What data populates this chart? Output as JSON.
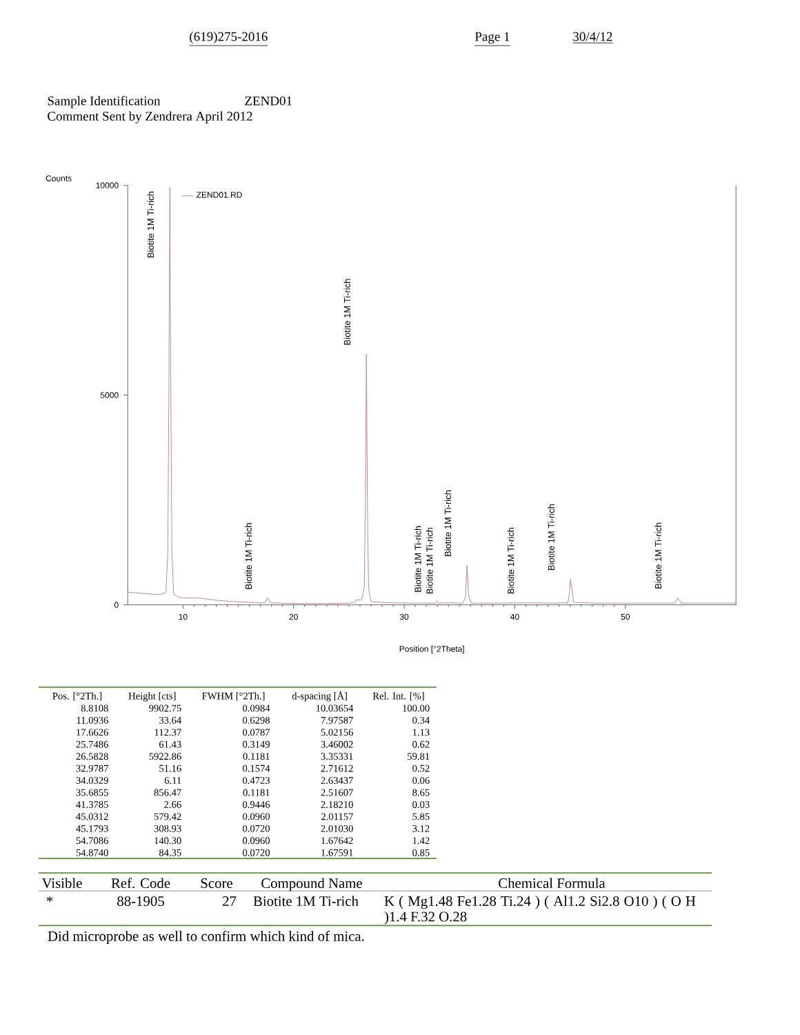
{
  "chart_data": [
    {
      "type": "line",
      "xlabel": "Position [°2Theta]",
      "ylabel": "Counts",
      "xlim": [
        5,
        60
      ],
      "ylim": [
        0,
        10000
      ],
      "xticks": [
        10,
        20,
        30,
        40,
        50
      ],
      "yticks": [
        0,
        5000,
        10000
      ],
      "legend": "top left",
      "series": [
        {
          "name": "ZEND01.RD",
          "color": "#b98c8c",
          "x": [
            5.0,
            5.5,
            6.0,
            6.5,
            7.0,
            7.5,
            8.0,
            8.45,
            8.62,
            8.72,
            8.8108,
            8.9,
            9.0,
            9.15,
            9.6,
            10.3,
            11.0936,
            11.8,
            13.0,
            14.5,
            16.0,
            17.4,
            17.6626,
            17.9,
            19.0,
            21.0,
            23.0,
            25.0,
            25.5,
            25.7486,
            26.15,
            26.38,
            26.48,
            26.5828,
            26.68,
            26.78,
            27.0,
            28.5,
            31.0,
            32.8,
            32.9787,
            33.15,
            34.0329,
            35.3,
            35.55,
            35.6855,
            35.83,
            36.1,
            38.5,
            41.3785,
            43.5,
            44.8,
            44.93,
            45.0312,
            45.1793,
            45.32,
            47.5,
            51.0,
            54.5,
            54.7086,
            54.874,
            55.05,
            57.0,
            60.0
          ],
          "values": [
            300,
            290,
            280,
            270,
            260,
            250,
            250,
            300,
            1200,
            5000,
            9950,
            5000,
            1200,
            250,
            180,
            160,
            170,
            150,
            110,
            80,
            60,
            50,
            160,
            50,
            40,
            30,
            30,
            40,
            60,
            120,
            120,
            400,
            2200,
            5980,
            2200,
            400,
            80,
            50,
            40,
            40,
            90,
            40,
            50,
            40,
            200,
            940,
            200,
            40,
            40,
            50,
            40,
            50,
            250,
            610,
            350,
            60,
            40,
            40,
            40,
            170,
            110,
            40,
            40,
            40
          ]
        }
      ],
      "annotations": [
        "(619)275-2016",
        "Page 1",
        "30/4/12",
        "Sample Identification",
        "ZEND01",
        "Comment Sent by Zendrera April 2012",
        {
          "text": "Biotite 1M Ti-rich",
          "x": 8.8108,
          "y": 9950
        },
        {
          "text": "Biotite 1M Ti-rich",
          "x": 17.6626,
          "y": 160
        },
        {
          "text": "Biotite 1M Ti-rich",
          "x": 26.5828,
          "y": 5980
        },
        {
          "text": "Biotite 1M Ti-rich",
          "x": 32.9787,
          "y": 90
        },
        {
          "text": "Biotite 1M Ti-rich",
          "x": 34.0329,
          "y": 50
        },
        {
          "text": "Biotite 1M Ti-rich",
          "x": 35.6855,
          "y": 940
        },
        {
          "text": "Biotite 1M Ti-rich",
          "x": 41.3785,
          "y": 50
        },
        {
          "text": "Biotite 1M Ti-rich",
          "x": 45.0312,
          "y": 610
        },
        {
          "text": "Biotite 1M Ti-rich",
          "x": 54.7086,
          "y": 170
        }
      ]
    },
    {
      "type": "other",
      "categories": [
        "Pos. [°2Th.]",
        "Height [cts]",
        "FWHM [°2Th.]",
        "d-spacing [Å]",
        "Rel. Int. [%]"
      ],
      "annotations": [
        "8.8108",
        "9902.75",
        "0.0984",
        "10.03654",
        "100.00",
        "11.0936",
        "33.64",
        "0.6298",
        "7.97587",
        "0.34",
        "17.6626",
        "112.37",
        "0.0787",
        "5.02156",
        "1.13",
        "25.7486",
        "61.43",
        "0.3149",
        "3.46002",
        "0.62",
        "26.5828",
        "5922.86",
        "0.1181",
        "3.35331",
        "59.81",
        "32.9787",
        "51.16",
        "0.1574",
        "2.71612",
        "0.52",
        "34.0329",
        "6.11",
        "0.4723",
        "2.63437",
        "0.06",
        "35.6855",
        "856.47",
        "0.1181",
        "2.51607",
        "8.65",
        "41.3785",
        "2.66",
        "0.9446",
        "2.18210",
        "0.03",
        "45.0312",
        "579.42",
        "0.0960",
        "2.01157",
        "5.85",
        "45.1793",
        "308.93",
        "0.0720",
        "2.01030",
        "3.12",
        "54.7086",
        "140.30",
        "0.0960",
        "1.67642",
        "1.42",
        "54.8740",
        "84.35",
        "0.0720",
        "1.67591",
        "0.85"
      ]
    },
    {
      "type": "other",
      "categories": [
        "Visible",
        "Ref. Code",
        "Score",
        "Compound Name",
        "Chemical Formula"
      ],
      "annotations": [
        "*",
        "88-1905",
        "27",
        "Biotite 1M Ti-rich",
        "K ( Mg1.48 Fe1.28 Ti.24 ) ( Al1.2 Si2.8 O10 ) ( O H )1.4 F.32 O.28",
        "Did microprobe as well to confirm which kind of  mica."
      ]
    }
  ]
}
